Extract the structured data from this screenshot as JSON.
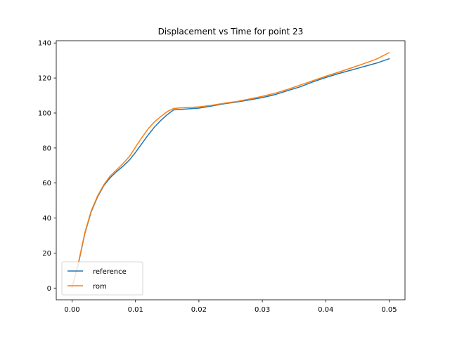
{
  "chart_data": {
    "type": "line",
    "title": "Displacement vs Time for point 23",
    "xlabel": "",
    "ylabel": "",
    "xlim": [
      -0.0025,
      0.0525
    ],
    "ylim": [
      -6.7,
      141.3
    ],
    "xticks": [
      0.0,
      0.01,
      0.02,
      0.03,
      0.04,
      0.05
    ],
    "xtick_labels": [
      "0.00",
      "0.01",
      "0.02",
      "0.03",
      "0.04",
      "0.05"
    ],
    "yticks": [
      0,
      20,
      40,
      60,
      80,
      100,
      120,
      140
    ],
    "ytick_labels": [
      "0",
      "20",
      "40",
      "60",
      "80",
      "100",
      "120",
      "140"
    ],
    "grid": false,
    "legend_position": "lower-left",
    "series": [
      {
        "name": "reference",
        "color": "#1f77b4",
        "x": [
          0.0,
          0.001,
          0.002,
          0.003,
          0.004,
          0.005,
          0.006,
          0.007,
          0.008,
          0.009,
          0.01,
          0.011,
          0.012,
          0.013,
          0.014,
          0.015,
          0.016,
          0.017,
          0.018,
          0.02,
          0.022,
          0.024,
          0.026,
          0.028,
          0.03,
          0.032,
          0.034,
          0.036,
          0.038,
          0.04,
          0.042,
          0.044,
          0.046,
          0.048,
          0.05
        ],
        "y": [
          0.5,
          14,
          31,
          43.5,
          52,
          58.5,
          63,
          66.5,
          69.5,
          73,
          77.5,
          82.5,
          87.5,
          92,
          95.8,
          99,
          101.8,
          102,
          102.3,
          102.8,
          104,
          105.3,
          106.3,
          107.5,
          108.8,
          110.5,
          112.8,
          115,
          117.8,
          120.3,
          122.5,
          124.5,
          126.5,
          128.5,
          131
        ]
      },
      {
        "name": "rom",
        "color": "#ff7f0e",
        "x": [
          0.0,
          0.001,
          0.002,
          0.003,
          0.004,
          0.005,
          0.006,
          0.007,
          0.008,
          0.009,
          0.01,
          0.011,
          0.012,
          0.013,
          0.014,
          0.015,
          0.016,
          0.017,
          0.018,
          0.02,
          0.022,
          0.024,
          0.026,
          0.028,
          0.03,
          0.032,
          0.034,
          0.036,
          0.038,
          0.04,
          0.042,
          0.044,
          0.046,
          0.048,
          0.05
        ],
        "y": [
          0.5,
          14.5,
          31.5,
          44,
          52.5,
          59,
          64,
          67.5,
          71,
          75,
          80.5,
          86,
          91,
          95,
          98,
          100.8,
          102.6,
          102.9,
          103.1,
          103.5,
          104.4,
          105.6,
          106.6,
          108,
          109.5,
          111.3,
          113.5,
          116,
          118.5,
          121,
          123.3,
          125.7,
          128.2,
          130.8,
          134.5
        ]
      }
    ]
  }
}
